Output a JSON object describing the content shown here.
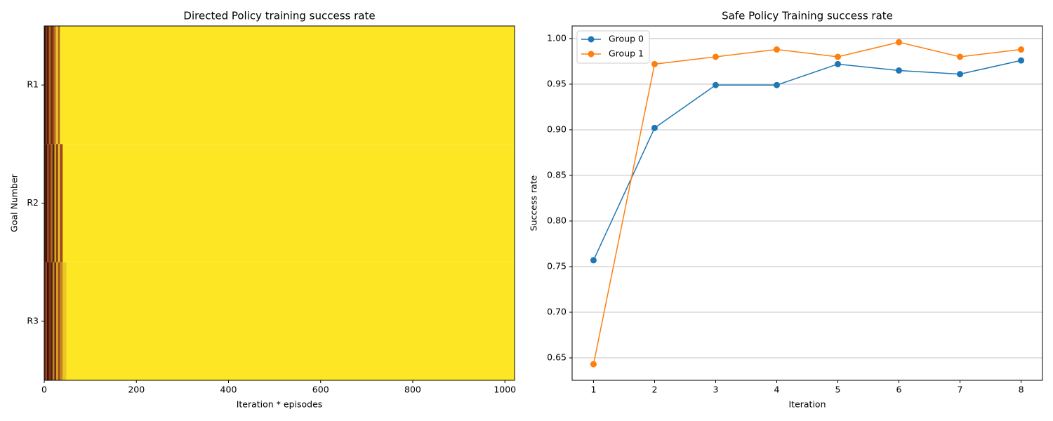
{
  "chart_data": [
    {
      "type": "heatmap",
      "title": "Directed Policy training success rate",
      "xlabel": "Iteration * episodes",
      "ylabel": "Goal Number",
      "categories": [
        "R1",
        "R2",
        "R3"
      ],
      "bins": [
        0,
        3,
        6,
        10,
        14,
        18,
        22,
        26,
        30,
        34,
        40,
        48,
        1020
      ],
      "values": [
        [
          0.1,
          0.4,
          0.2,
          0.6,
          0.3,
          0.5,
          0.7,
          0.9,
          0.6,
          1,
          1,
          1
        ],
        [
          0.2,
          0.1,
          0.5,
          0.3,
          0.6,
          0.2,
          0.8,
          0.4,
          0.9,
          0.5,
          1,
          1
        ],
        [
          0.3,
          0.5,
          0.1,
          0.4,
          0.2,
          0.7,
          0.3,
          0.8,
          0.5,
          0.7,
          0.9,
          1
        ]
      ],
      "colormap": [
        "#1a0606",
        "#a0461e",
        "#fde725"
      ],
      "xlim": [
        0,
        1021
      ],
      "xticks": [
        0,
        200,
        400,
        600,
        800,
        1000
      ]
    },
    {
      "type": "line",
      "title": "Safe Policy Training success rate",
      "xlabel": "Iteration",
      "ylabel": "Success rate",
      "x": [
        1,
        2,
        3,
        4,
        5,
        6,
        7,
        8
      ],
      "series": [
        {
          "name": "Group 0",
          "color": "#1f77b4",
          "values": [
            0.757,
            0.902,
            0.949,
            0.949,
            0.972,
            0.965,
            0.961,
            0.976
          ]
        },
        {
          "name": "Group 1",
          "color": "#ff7f0e",
          "values": [
            0.643,
            0.972,
            0.98,
            0.988,
            0.98,
            0.996,
            0.98,
            0.988
          ]
        }
      ],
      "xlim": [
        0.65,
        8.35
      ],
      "xticks": [
        1,
        2,
        3,
        4,
        5,
        6,
        7,
        8
      ],
      "ylim": [
        0.6254,
        1.0138
      ],
      "yticks": [
        0.65,
        {
          "value": 0.7,
          "label": "0.70"
        },
        0.75,
        {
          "value": 0.8,
          "label": "0.80"
        },
        0.85,
        {
          "value": 0.9,
          "label": "0.90"
        },
        0.95,
        {
          "value": 1,
          "label": "1.00"
        }
      ],
      "grid": "y",
      "legend": "upper left"
    }
  ]
}
